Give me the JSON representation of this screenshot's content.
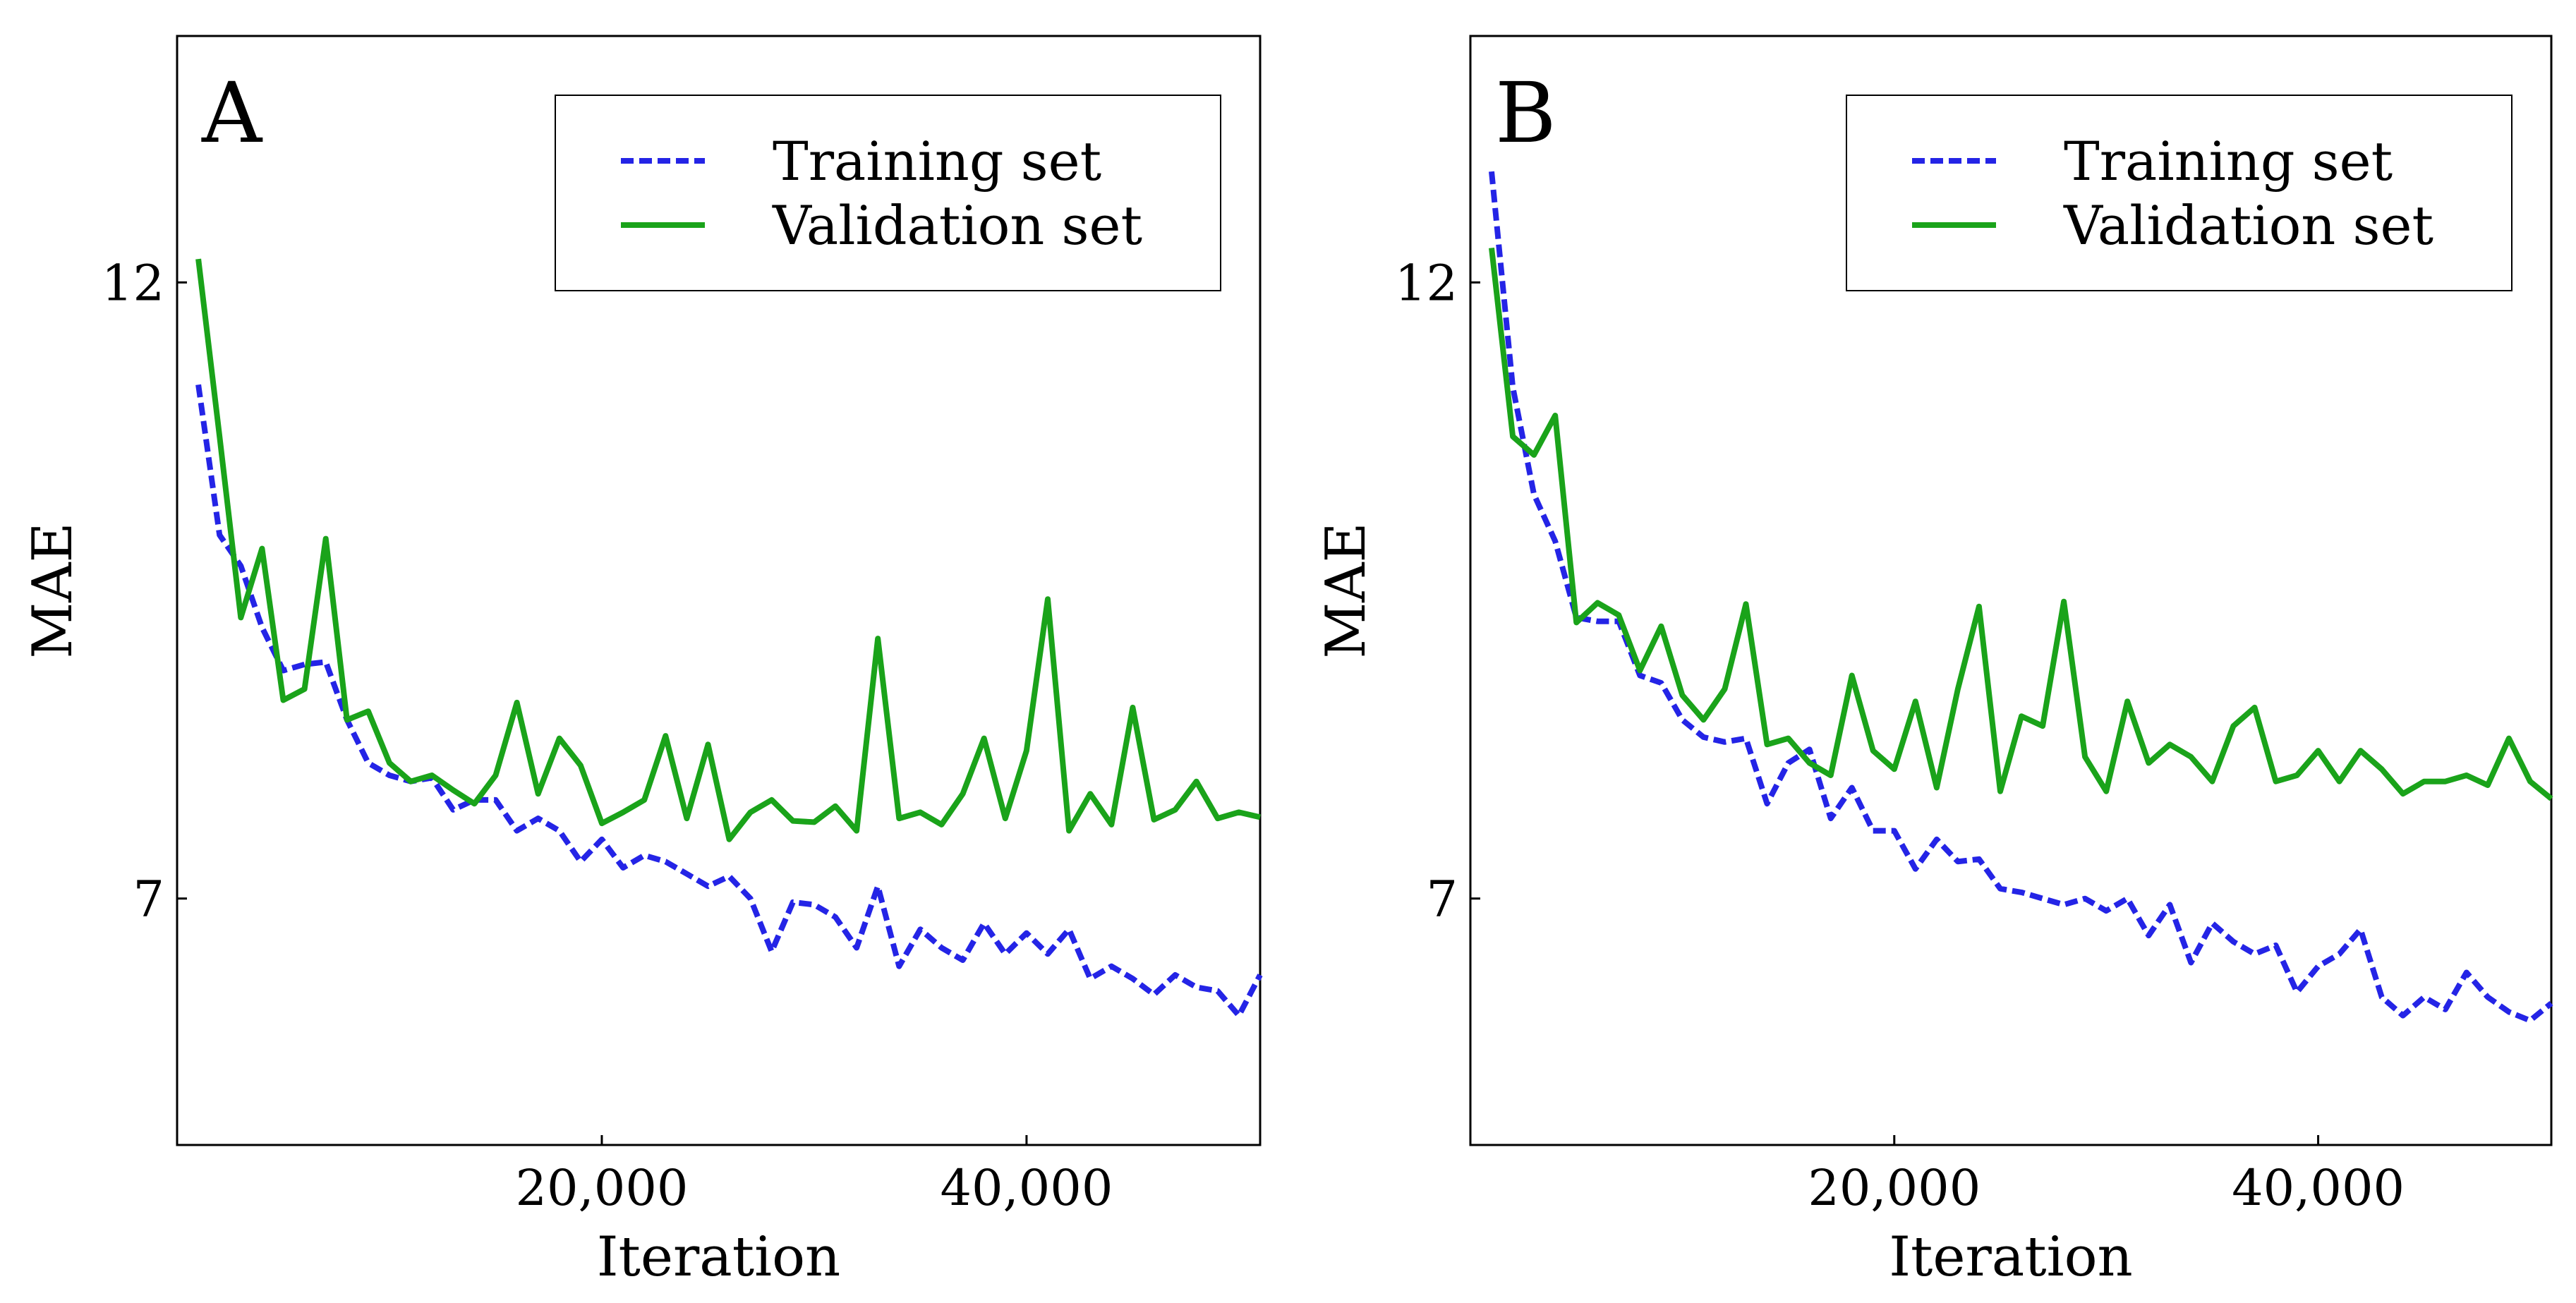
{
  "chart_data": [
    {
      "type": "line",
      "title": "A",
      "xlabel": "Iteration",
      "ylabel": "MAE",
      "legend": "upper right",
      "x": [
        1000,
        2000,
        3000,
        4000,
        5000,
        6000,
        7000,
        8000,
        9000,
        10000,
        11000,
        12000,
        13000,
        14000,
        15000,
        16000,
        17000,
        18000,
        19000,
        20000,
        21000,
        22000,
        23000,
        24000,
        25000,
        26000,
        27000,
        28000,
        29000,
        30000,
        31000,
        32000,
        33000,
        34000,
        35000,
        36000,
        37000,
        38000,
        39000,
        40000,
        41000,
        42000,
        43000,
        44000,
        45000,
        46000,
        47000,
        48000,
        49000,
        50000,
        51000
      ],
      "xlim": [
        0,
        51000
      ],
      "xticks": [
        {
          "value": 20000,
          "label": "20,000"
        },
        {
          "value": 40000,
          "label": "40,000"
        }
      ],
      "ylim": [
        5,
        14
      ],
      "yticks": [
        7,
        12
      ],
      "series": [
        {
          "name": "Training set",
          "color": "#2424e6",
          "dash": true,
          "values": [
            11.17,
            9.95,
            9.7,
            9.2,
            8.85,
            8.9,
            8.92,
            8.45,
            8.1,
            8.0,
            7.95,
            7.98,
            7.72,
            7.8,
            7.8,
            7.55,
            7.65,
            7.55,
            7.3,
            7.48,
            7.25,
            7.35,
            7.3,
            7.2,
            7.1,
            7.18,
            7.0,
            6.57,
            6.97,
            6.95,
            6.85,
            6.6,
            7.1,
            6.45,
            6.75,
            6.6,
            6.5,
            6.8,
            6.55,
            6.72,
            6.55,
            6.75,
            6.35,
            6.45,
            6.35,
            6.22,
            6.38,
            6.28,
            6.25,
            6.05,
            6.38
          ]
        },
        {
          "name": "Validation set",
          "color": "#1aa31a",
          "dash": false,
          "values": [
            12.19,
            10.75,
            9.28,
            9.84,
            8.61,
            8.7,
            9.92,
            8.45,
            8.52,
            8.1,
            7.95,
            8.0,
            7.88,
            7.77,
            8.0,
            8.59,
            7.85,
            8.3,
            8.08,
            7.61,
            7.7,
            7.8,
            8.32,
            7.65,
            8.25,
            7.48,
            7.7,
            7.8,
            7.63,
            7.62,
            7.75,
            7.55,
            9.11,
            7.65,
            7.7,
            7.6,
            7.85,
            8.3,
            7.65,
            8.2,
            9.43,
            7.55,
            7.85,
            7.6,
            8.55,
            7.64,
            7.72,
            7.95,
            7.65,
            7.7,
            7.66
          ]
        }
      ]
    },
    {
      "type": "line",
      "title": "B",
      "xlabel": "Iteration",
      "ylabel": "MAE",
      "legend": "upper right",
      "x": [
        1000,
        2000,
        3000,
        4000,
        5000,
        6000,
        7000,
        8000,
        9000,
        10000,
        11000,
        12000,
        13000,
        14000,
        15000,
        16000,
        17000,
        18000,
        19000,
        20000,
        21000,
        22000,
        23000,
        24000,
        25000,
        26000,
        27000,
        28000,
        29000,
        30000,
        31000,
        32000,
        33000,
        34000,
        35000,
        36000,
        37000,
        38000,
        39000,
        40000,
        41000,
        42000,
        43000,
        44000,
        45000,
        46000,
        47000,
        48000,
        49000,
        50000,
        51000
      ],
      "xlim": [
        0,
        51000
      ],
      "xticks": [
        {
          "value": 20000,
          "label": "20,000"
        },
        {
          "value": 40000,
          "label": "40,000"
        }
      ],
      "ylim": [
        5,
        14
      ],
      "yticks": [
        7,
        12
      ],
      "series": [
        {
          "name": "Training set",
          "color": "#2424e6",
          "dash": true,
          "values": [
            12.9,
            11.15,
            10.28,
            9.9,
            9.28,
            9.25,
            9.25,
            8.81,
            8.75,
            8.45,
            8.31,
            8.27,
            8.3,
            7.77,
            8.1,
            8.21,
            7.65,
            7.9,
            7.55,
            7.55,
            7.24,
            7.48,
            7.3,
            7.32,
            7.08,
            7.05,
            7.0,
            6.95,
            7.0,
            6.9,
            7.0,
            6.7,
            6.95,
            6.48,
            6.8,
            6.65,
            6.55,
            6.62,
            6.24,
            6.45,
            6.55,
            6.75,
            6.2,
            6.05,
            6.2,
            6.1,
            6.4,
            6.2,
            6.08,
            6.01,
            6.15
          ]
        },
        {
          "name": "Validation set",
          "color": "#1aa31a",
          "dash": false,
          "values": [
            12.28,
            10.75,
            10.6,
            10.92,
            9.24,
            9.4,
            9.3,
            8.85,
            9.21,
            8.65,
            8.45,
            8.7,
            9.39,
            8.25,
            8.3,
            8.1,
            8.0,
            8.81,
            8.2,
            8.05,
            8.6,
            7.9,
            8.7,
            9.37,
            7.87,
            8.48,
            8.4,
            9.41,
            8.15,
            7.87,
            8.6,
            8.1,
            8.25,
            8.15,
            7.95,
            8.4,
            8.55,
            7.95,
            8.0,
            8.2,
            7.95,
            8.2,
            8.05,
            7.85,
            7.95,
            7.95,
            8.0,
            7.92,
            8.3,
            7.95,
            7.81
          ]
        }
      ]
    }
  ]
}
